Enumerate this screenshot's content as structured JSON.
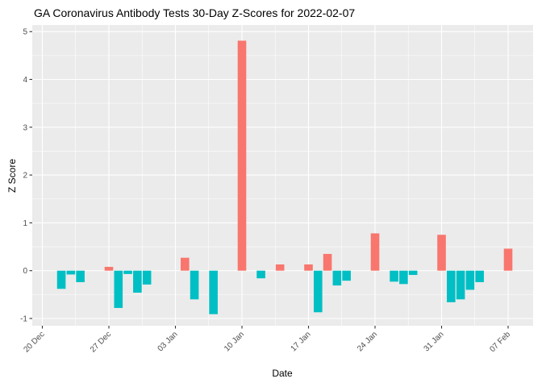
{
  "chart_data": {
    "type": "bar",
    "title": "GA Coronavirus Antibody Tests 30-Day Z-Scores for 2022-02-07",
    "xlabel": "Date",
    "ylabel": "Z Score",
    "x_ticks": [
      {
        "label": "20 Dec",
        "day": 0
      },
      {
        "label": "27 Dec",
        "day": 7
      },
      {
        "label": "03 Jan",
        "day": 14
      },
      {
        "label": "10 Jan",
        "day": 21
      },
      {
        "label": "17 Jan",
        "day": 28
      },
      {
        "label": "24 Jan",
        "day": 35
      },
      {
        "label": "31 Jan",
        "day": 42
      },
      {
        "label": "07 Feb",
        "day": 49
      }
    ],
    "y_ticks": [
      -1,
      0,
      1,
      2,
      3,
      4,
      5
    ],
    "ylim": [
      -1.15,
      5.14
    ],
    "xlim_days": [
      -1.06,
      51.63
    ],
    "grid": true,
    "legend_position": "none",
    "colors": {
      "positive": "#F8766D",
      "negative": "#00BFC4",
      "panel_bg": "#EBEBEB",
      "gridline": "#FFFFFF",
      "axis_text": "#4D4D4D",
      "tick_mark": "#333333",
      "title_text": "#000000"
    },
    "bars": [
      {
        "date": "2021-12-22",
        "value": -0.38
      },
      {
        "date": "2021-12-23",
        "value": -0.08
      },
      {
        "date": "2021-12-24",
        "value": -0.24
      },
      {
        "date": "2021-12-27",
        "value": 0.08
      },
      {
        "date": "2021-12-28",
        "value": -0.78
      },
      {
        "date": "2021-12-29",
        "value": -0.07
      },
      {
        "date": "2021-12-30",
        "value": -0.46
      },
      {
        "date": "2021-12-31",
        "value": -0.29
      },
      {
        "date": "2022-01-04",
        "value": 0.27
      },
      {
        "date": "2022-01-05",
        "value": -0.6
      },
      {
        "date": "2022-01-07",
        "value": -0.91
      },
      {
        "date": "2022-01-10",
        "value": 4.81
      },
      {
        "date": "2022-01-12",
        "value": -0.16
      },
      {
        "date": "2022-01-14",
        "value": 0.13
      },
      {
        "date": "2022-01-17",
        "value": 0.13
      },
      {
        "date": "2022-01-18",
        "value": -0.87
      },
      {
        "date": "2022-01-19",
        "value": 0.35
      },
      {
        "date": "2022-01-20",
        "value": -0.31
      },
      {
        "date": "2022-01-21",
        "value": -0.21
      },
      {
        "date": "2022-01-24",
        "value": 0.78
      },
      {
        "date": "2022-01-26",
        "value": -0.23
      },
      {
        "date": "2022-01-27",
        "value": -0.28
      },
      {
        "date": "2022-01-28",
        "value": -0.09
      },
      {
        "date": "2022-01-31",
        "value": 0.75
      },
      {
        "date": "2022-02-01",
        "value": -0.66
      },
      {
        "date": "2022-02-02",
        "value": -0.6
      },
      {
        "date": "2022-02-03",
        "value": -0.4
      },
      {
        "date": "2022-02-04",
        "value": -0.24
      },
      {
        "date": "2022-02-07",
        "value": 0.46
      }
    ]
  }
}
